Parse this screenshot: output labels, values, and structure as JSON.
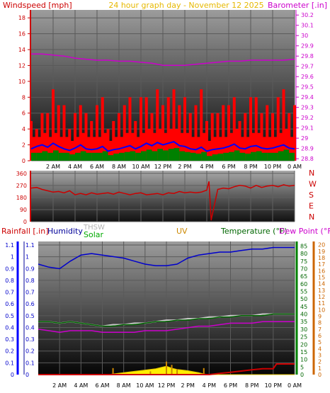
{
  "header": {
    "windspeed_label": "Windspeed [mph]",
    "title": "24 hour graph day - November 12 2025",
    "barometer_label": "Barometer [.in]"
  },
  "colors": {
    "windspeed": "#ff0000",
    "gust": "#ff0000",
    "wind_avg": "#0000ff",
    "wind_low": "#008000",
    "barometer": "#cc00cc",
    "direction": "#cc0000",
    "rain": "#cc0000",
    "humidity": "#0000cc",
    "thsw": "#c8c8c8",
    "solar": "#00aa00",
    "uv": "#cc8800",
    "temperature": "#006600",
    "dewpoint": "#cc00cc",
    "axis_rain": "#0000ff",
    "axis_humidity": "#008000",
    "axis_uv": "#cc6600"
  },
  "time_ticks": [
    "2 AM",
    "4 AM",
    "6 AM",
    "8 AM",
    "10 AM",
    "12 PM",
    "2 PM",
    "4 PM",
    "6 PM",
    "8 PM",
    "10 PM",
    "0 AM"
  ],
  "chart_data": [
    {
      "type": "line",
      "panel": "wind",
      "x_unit": "hours since midnight",
      "xlim": [
        0,
        24
      ],
      "y_left": {
        "label": "Windspeed [mph]",
        "ticks": [
          0,
          2,
          4,
          6,
          8,
          10,
          12,
          14,
          16,
          18
        ],
        "lim": [
          0,
          19
        ]
      },
      "y_right": {
        "label": "Barometer [.in]",
        "ticks": [
          "28.8",
          "28.9",
          "29",
          "29.1",
          "29.2",
          "29.3",
          "29.4",
          "29.5",
          "29.6",
          "29.7",
          "29.8",
          "29.9",
          "30",
          "30.1",
          "30.2"
        ],
        "lim": [
          28.78,
          30.25
        ]
      },
      "series": [
        {
          "key": "gust",
          "axis": "left",
          "style": "bars",
          "x": [
            0.0,
            0.5,
            1.0,
            1.5,
            2.0,
            2.5,
            3.0,
            3.5,
            4.0,
            4.5,
            5.0,
            5.5,
            6.0,
            6.5,
            7.0,
            7.5,
            8.0,
            8.5,
            9.0,
            9.5,
            10.0,
            10.5,
            11.0,
            11.5,
            12.0,
            12.5,
            13.0,
            13.5,
            14.0,
            14.5,
            15.0,
            15.5,
            16.0,
            16.5,
            17.0,
            17.5,
            18.0,
            18.5,
            19.0,
            19.5,
            20.0,
            20.5,
            21.0,
            21.5,
            22.0,
            22.5,
            23.0,
            23.5,
            24.0
          ],
          "values": [
            5,
            4,
            6,
            6,
            9,
            7,
            7,
            4,
            6,
            7,
            6,
            5,
            7,
            8,
            4,
            5,
            6,
            7,
            8,
            5,
            8,
            8,
            6,
            9,
            7,
            8,
            9,
            7,
            8,
            6,
            7,
            9,
            5,
            6,
            6,
            7,
            7,
            8,
            5,
            6,
            8,
            8,
            6,
            7,
            6,
            8,
            9,
            6,
            7
          ]
        },
        {
          "key": "windspeed",
          "axis": "left",
          "style": "band",
          "x": [
            0.0,
            0.5,
            1.0,
            1.5,
            2.0,
            2.5,
            3.0,
            3.5,
            4.0,
            4.5,
            5.0,
            5.5,
            6.0,
            6.5,
            7.0,
            7.5,
            8.0,
            8.5,
            9.0,
            9.5,
            10.0,
            10.5,
            11.0,
            11.5,
            12.0,
            12.5,
            13.0,
            13.5,
            14.0,
            14.5,
            15.0,
            15.5,
            16.0,
            16.5,
            17.0,
            17.5,
            18.0,
            18.5,
            19.0,
            19.5,
            20.0,
            20.5,
            21.0,
            21.5,
            22.0,
            22.5,
            23.0,
            23.5,
            24.0
          ],
          "values": [
            3,
            3,
            3.5,
            3,
            3.5,
            3,
            3,
            2.5,
            3,
            3.5,
            3,
            3,
            3,
            3.5,
            2.5,
            3,
            3,
            3.5,
            3.5,
            3,
            3.5,
            4,
            3.5,
            4,
            3.5,
            4,
            4,
            3.5,
            3.5,
            3,
            3,
            3.5,
            2.5,
            3,
            3,
            3,
            3.5,
            4,
            3,
            3,
            3.5,
            3.5,
            3,
            3,
            3,
            3.5,
            4,
            3,
            3
          ]
        },
        {
          "key": "wind_avg",
          "axis": "left",
          "style": "line",
          "x": [
            0.0,
            0.5,
            1.0,
            1.5,
            2.0,
            2.5,
            3.0,
            3.5,
            4.0,
            4.5,
            5.0,
            5.5,
            6.0,
            6.5,
            7.0,
            7.5,
            8.0,
            8.5,
            9.0,
            9.5,
            10.0,
            10.5,
            11.0,
            11.5,
            12.0,
            12.5,
            13.0,
            13.5,
            14.0,
            14.5,
            15.0,
            15.5,
            16.0,
            16.5,
            17.0,
            17.5,
            18.0,
            18.5,
            19.0,
            19.5,
            20.0,
            20.5,
            21.0,
            21.5,
            22.0,
            22.5,
            23.0,
            23.5,
            24.0
          ],
          "values": [
            1.5,
            1.8,
            2,
            1.7,
            2.2,
            1.8,
            1.5,
            1.3,
            1.6,
            2,
            1.5,
            1.4,
            1.5,
            1.8,
            1.2,
            1.4,
            1.5,
            1.7,
            1.9,
            1.5,
            1.8,
            2.2,
            1.9,
            2.3,
            2,
            2.2,
            2.4,
            1.9,
            1.8,
            1.5,
            1.4,
            1.7,
            1.2,
            1.4,
            1.5,
            1.6,
            1.8,
            2.1,
            1.6,
            1.5,
            1.8,
            1.9,
            1.6,
            1.5,
            1.6,
            1.8,
            2,
            1.6,
            1.5
          ]
        },
        {
          "key": "wind_low",
          "axis": "left",
          "style": "band",
          "x": [
            0.0,
            0.5,
            1.0,
            1.5,
            2.0,
            2.5,
            3.0,
            3.5,
            4.0,
            4.5,
            5.0,
            5.5,
            6.0,
            6.5,
            7.0,
            7.5,
            8.0,
            8.5,
            9.0,
            9.5,
            10.0,
            10.5,
            11.0,
            11.5,
            12.0,
            12.5,
            13.0,
            13.5,
            14.0,
            14.5,
            15.0,
            15.5,
            16.0,
            16.5,
            17.0,
            17.5,
            18.0,
            18.5,
            19.0,
            19.5,
            20.0,
            20.5,
            21.0,
            21.5,
            22.0,
            22.5,
            23.0,
            23.5,
            24.0
          ],
          "values": [
            1,
            1,
            1.2,
            1,
            1.3,
            1,
            1,
            0.8,
            1,
            1.2,
            1,
            1,
            1,
            1.2,
            0.7,
            0.9,
            1,
            1.1,
            1.2,
            1,
            1.2,
            1.4,
            1.2,
            1.5,
            1.3,
            1.5,
            1.6,
            1.2,
            1.1,
            1,
            0.9,
            1.1,
            0.6,
            0.8,
            0.9,
            1,
            1.1,
            1.3,
            1,
            0.9,
            1.1,
            1.2,
            1,
            1,
            1,
            1.2,
            1.4,
            1,
            1
          ]
        },
        {
          "key": "barometer",
          "axis": "right",
          "style": "line",
          "x": [
            0,
            1,
            2,
            3,
            4,
            5,
            6,
            7,
            8,
            9,
            10,
            11,
            12,
            13,
            14,
            15,
            16,
            17,
            18,
            19,
            20,
            21,
            22,
            23,
            24
          ],
          "values": [
            29.82,
            29.82,
            29.81,
            29.8,
            29.78,
            29.77,
            29.76,
            29.76,
            29.75,
            29.75,
            29.74,
            29.73,
            29.71,
            29.71,
            29.71,
            29.72,
            29.73,
            29.74,
            29.75,
            29.75,
            29.76,
            29.76,
            29.76,
            29.76,
            29.77
          ]
        }
      ]
    },
    {
      "type": "line",
      "panel": "direction",
      "x_unit": "hours since midnight",
      "xlim": [
        0,
        24
      ],
      "y_left": {
        "ticks": [
          0,
          90,
          180,
          270,
          360
        ],
        "lim": [
          0,
          380
        ]
      },
      "y_right_labels": [
        "N",
        "W",
        "S",
        "E",
        "N"
      ],
      "series": [
        {
          "key": "direction",
          "x": [
            0.0,
            0.5,
            1.0,
            1.5,
            2.0,
            2.5,
            3.0,
            3.5,
            4.0,
            4.5,
            5.0,
            5.5,
            6.0,
            6.5,
            7.0,
            7.5,
            8.0,
            8.5,
            9.0,
            9.5,
            10.0,
            10.5,
            11.0,
            11.5,
            12.0,
            12.5,
            13.0,
            13.5,
            14.0,
            14.5,
            15.0,
            15.5,
            16.0,
            16.2,
            16.4,
            16.6,
            17.0,
            17.5,
            18.0,
            18.5,
            19.0,
            19.5,
            20.0,
            20.5,
            21.0,
            21.5,
            22.0,
            22.5,
            23.0,
            23.5,
            24.0
          ],
          "values": [
            250,
            255,
            240,
            230,
            220,
            225,
            215,
            230,
            200,
            210,
            200,
            215,
            205,
            210,
            215,
            205,
            220,
            210,
            200,
            210,
            215,
            200,
            205,
            210,
            200,
            215,
            210,
            225,
            215,
            220,
            215,
            220,
            235,
            300,
            10,
            90,
            240,
            250,
            245,
            260,
            270,
            265,
            250,
            270,
            255,
            265,
            270,
            260,
            275,
            265,
            270
          ]
        }
      ]
    },
    {
      "type": "line",
      "panel": "environment",
      "x_unit": "hours since midnight",
      "xlim": [
        0,
        24
      ],
      "legend": [
        "Rainfall [.in]",
        "Humidity",
        "THSW",
        "Solar",
        "UV",
        "Temperature (°F)",
        "Dew Point (°F)"
      ],
      "y_axes": {
        "rain": {
          "label": "Rainfall [.in]",
          "ticks": [
            "0",
            "0.1",
            "0.2",
            "0.3",
            "0.4",
            "0.5",
            "0.6",
            "0.7",
            "0.8",
            "0.9",
            "1",
            "1.1"
          ],
          "lim": [
            0,
            1.13
          ]
        },
        "humidity": {
          "label": "Humidity",
          "ticks": [
            "0",
            "5",
            "10",
            "15",
            "20",
            "25",
            "30",
            "35",
            "40",
            "45",
            "50",
            "55",
            "60",
            "65",
            "70",
            "75",
            "80",
            "85"
          ],
          "lim": [
            0,
            88
          ]
        },
        "temperature": {
          "label": "Temperature (°F)",
          "ticks": [
            "0",
            "1",
            "2",
            "3",
            "4",
            "5",
            "6",
            "7",
            "8",
            "9",
            "10",
            "11",
            "12",
            "13",
            "14",
            "15",
            "16",
            "17",
            "18",
            "19",
            "20"
          ],
          "lim": [
            0,
            20.5
          ]
        }
      },
      "series": [
        {
          "key": "humidity",
          "axis": "humidity",
          "label": "Humidity",
          "x": [
            0,
            1,
            2,
            3,
            4,
            5,
            6,
            7,
            8,
            9,
            10,
            11,
            12,
            13,
            14,
            15,
            16,
            17,
            18,
            19,
            20,
            21,
            22,
            23,
            24
          ],
          "values": [
            73,
            71,
            70,
            75,
            79,
            80,
            79,
            78,
            77,
            75,
            73,
            72,
            72,
            73,
            77,
            79,
            80,
            81,
            81,
            82,
            83,
            83,
            84,
            84,
            84
          ]
        },
        {
          "key": "thsw",
          "axis": "temperature",
          "label": "THSW",
          "x": [
            0,
            1,
            2,
            3,
            4,
            5,
            6,
            7,
            8,
            9,
            10,
            11,
            12,
            13,
            14,
            15,
            16,
            17,
            18,
            19,
            20,
            21,
            22,
            23,
            24
          ],
          "values": [
            35,
            35,
            34,
            35,
            34,
            33,
            32,
            33,
            33,
            34,
            34,
            35,
            36,
            36,
            37,
            37,
            38,
            38,
            39,
            39,
            39,
            40,
            40,
            40,
            40
          ]
        },
        {
          "key": "temperature",
          "axis": "humidity",
          "label": "Temperature (°F)",
          "x": [
            0,
            1,
            2,
            3,
            4,
            5,
            6,
            7,
            8,
            9,
            10,
            11,
            12,
            13,
            14,
            15,
            16,
            17,
            18,
            19,
            20,
            21,
            22,
            23,
            24
          ],
          "values": [
            35,
            35,
            34,
            35,
            34,
            33,
            32,
            32,
            33,
            33,
            34,
            35,
            35,
            36,
            36,
            37,
            37,
            38,
            38,
            39,
            39,
            39,
            40,
            40,
            40
          ]
        },
        {
          "key": "dewpoint",
          "axis": "humidity",
          "label": "Dew Point (°F)",
          "x": [
            0,
            1,
            2,
            3,
            4,
            5,
            6,
            7,
            8,
            9,
            10,
            11,
            12,
            13,
            14,
            15,
            16,
            17,
            18,
            19,
            20,
            21,
            22,
            23,
            24
          ],
          "values": [
            30,
            29,
            28,
            29,
            29,
            29,
            28,
            28,
            28,
            28,
            29,
            29,
            29,
            30,
            31,
            32,
            32,
            33,
            34,
            34,
            34,
            35,
            35,
            35,
            35
          ]
        },
        {
          "key": "solar",
          "axis": "temperature",
          "label": "Solar",
          "x": [
            0,
            6.5,
            7,
            8,
            9,
            10,
            11,
            11.5,
            12,
            12.5,
            13,
            14,
            15,
            15.5,
            16,
            24
          ],
          "values": [
            0,
            0,
            0.1,
            0.3,
            0.5,
            0.7,
            0.9,
            1.1,
            1.3,
            1.0,
            0.8,
            0.6,
            0.3,
            0.1,
            0,
            0
          ]
        },
        {
          "key": "uv",
          "axis": "temperature",
          "label": "UV",
          "x": [
            7,
            10.5,
            12,
            12.5,
            13,
            15.5
          ],
          "values": [
            1,
            0.5,
            2,
            1.5,
            0.8,
            1
          ]
        },
        {
          "key": "rain",
          "axis": "rain",
          "label": "Rainfall [.in]",
          "x": [
            0,
            16,
            17,
            18,
            20,
            21,
            22,
            22.3,
            23,
            24
          ],
          "values": [
            0,
            0,
            0.01,
            0.02,
            0.04,
            0.05,
            0.05,
            0.09,
            0.09,
            0.09
          ]
        }
      ]
    }
  ]
}
